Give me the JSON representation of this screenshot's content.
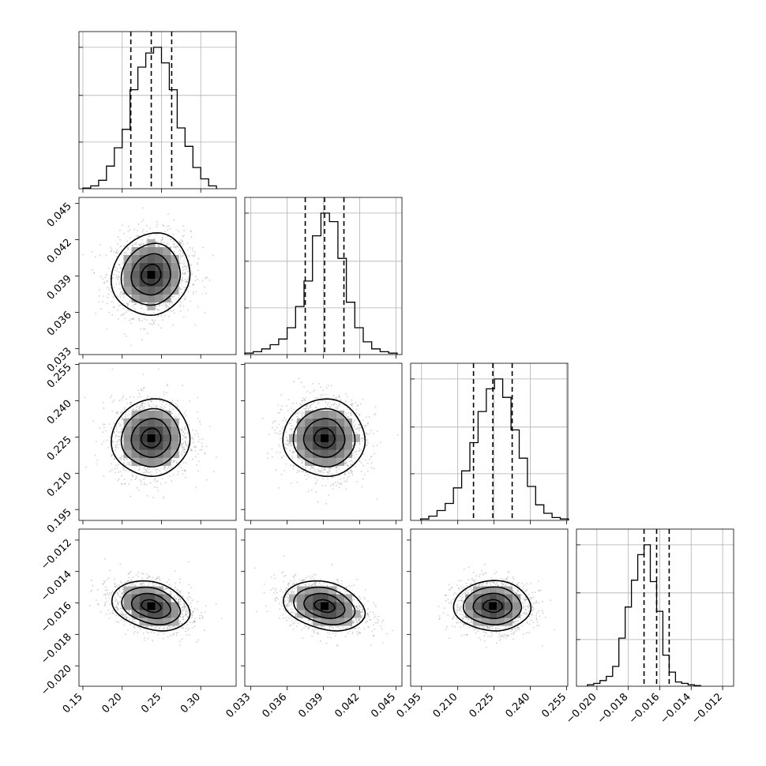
{
  "chart_data": {
    "type": "corner",
    "title": "",
    "grid": true,
    "quantile_lines": "dashed",
    "parameters": [
      {
        "index": 0,
        "range": [
          0.145,
          0.345
        ],
        "ticks": [
          0.15,
          0.2,
          0.25,
          0.3
        ],
        "tick_labels": [
          "0.15",
          "0.20",
          "0.25",
          "0.30"
        ],
        "quantiles": [
          0.211,
          0.237,
          0.263
        ],
        "histogram": {
          "bin_edges": [
            0.15,
            0.16,
            0.17,
            0.18,
            0.19,
            0.2,
            0.21,
            0.22,
            0.23,
            0.24,
            0.25,
            0.26,
            0.27,
            0.28,
            0.29,
            0.3,
            0.31,
            0.32
          ],
          "counts": [
            0.005,
            0.02,
            0.06,
            0.16,
            0.29,
            0.42,
            0.7,
            0.86,
            0.96,
            1.0,
            0.89,
            0.7,
            0.43,
            0.3,
            0.15,
            0.07,
            0.02
          ]
        }
      },
      {
        "index": 1,
        "range": [
          0.0325,
          0.0455
        ],
        "ticks": [
          0.033,
          0.036,
          0.039,
          0.042,
          0.045
        ],
        "tick_labels": [
          "0.033",
          "0.036",
          "0.039",
          "0.042",
          "0.045"
        ],
        "quantiles": [
          0.0375,
          0.0391,
          0.0407
        ],
        "histogram": {
          "bin_edges": [
            0.0325,
            0.0332,
            0.0339,
            0.0346,
            0.0353,
            0.036,
            0.0367,
            0.0374,
            0.0381,
            0.0388,
            0.0395,
            0.0402,
            0.0409,
            0.0416,
            0.0423,
            0.043,
            0.0437,
            0.0444,
            0.0451
          ],
          "counts": [
            0.01,
            0.02,
            0.04,
            0.07,
            0.11,
            0.19,
            0.34,
            0.52,
            0.84,
            1.0,
            0.94,
            0.68,
            0.37,
            0.19,
            0.09,
            0.04,
            0.02,
            0.01
          ]
        }
      },
      {
        "index": 2,
        "range": [
          0.1905,
          0.2555
        ],
        "ticks": [
          0.195,
          0.21,
          0.225,
          0.24,
          0.255
        ],
        "tick_labels": [
          "0.195",
          "0.210",
          "0.225",
          "0.240",
          "0.255"
        ],
        "quantiles": [
          0.2165,
          0.2245,
          0.2325
        ],
        "histogram": {
          "bin_edges": [
            0.1946,
            0.198,
            0.2014,
            0.2048,
            0.2082,
            0.2116,
            0.215,
            0.2184,
            0.2218,
            0.2252,
            0.2286,
            0.232,
            0.2354,
            0.2388,
            0.2422,
            0.2456,
            0.249,
            0.2524,
            0.2558
          ],
          "counts": [
            0.01,
            0.03,
            0.07,
            0.12,
            0.23,
            0.35,
            0.55,
            0.77,
            0.93,
            1.0,
            0.87,
            0.64,
            0.44,
            0.24,
            0.11,
            0.05,
            0.02,
            0.01
          ]
        }
      },
      {
        "index": 3,
        "range": [
          -0.0213,
          -0.0113
        ],
        "ticks": [
          -0.02,
          -0.018,
          -0.016,
          -0.014,
          -0.012
        ],
        "tick_labels": [
          "−0.020",
          "−0.018",
          "−0.016",
          "−0.014",
          "−0.012"
        ],
        "quantiles": [
          -0.017,
          -0.0162,
          -0.0154
        ],
        "histogram": {
          "bin_edges": [
            -0.0206,
            -0.0202,
            -0.0198,
            -0.0194,
            -0.019,
            -0.0186,
            -0.0182,
            -0.0178,
            -0.0174,
            -0.017,
            -0.0166,
            -0.0162,
            -0.0158,
            -0.0154,
            -0.015,
            -0.0146,
            -0.0142,
            -0.0138,
            -0.0134
          ],
          "counts": [
            0.01,
            0.02,
            0.04,
            0.07,
            0.14,
            0.34,
            0.56,
            0.75,
            0.93,
            1.0,
            0.74,
            0.53,
            0.22,
            0.1,
            0.03,
            0.02,
            0.01,
            0.005
          ]
        }
      }
    ],
    "pairs": [
      {
        "x": 0,
        "y": 1,
        "center": [
          0.237,
          0.0391
        ],
        "sigma": [
          0.025,
          0.0017
        ],
        "rho": 0.05
      },
      {
        "x": 0,
        "y": 2,
        "center": [
          0.237,
          0.2245
        ],
        "sigma": [
          0.025,
          0.008
        ],
        "rho": 0.0
      },
      {
        "x": 1,
        "y": 2,
        "center": [
          0.0391,
          0.2245
        ],
        "sigma": [
          0.0017,
          0.008
        ],
        "rho": -0.05
      },
      {
        "x": 0,
        "y": 3,
        "center": [
          0.237,
          -0.0162
        ],
        "sigma": [
          0.025,
          0.0008
        ],
        "rho": -0.3
      },
      {
        "x": 1,
        "y": 3,
        "center": [
          0.0391,
          -0.0162
        ],
        "sigma": [
          0.0017,
          0.0008
        ],
        "rho": -0.3
      },
      {
        "x": 2,
        "y": 3,
        "center": [
          0.2245,
          -0.0162
        ],
        "sigma": [
          0.008,
          0.0008
        ],
        "rho": -0.05
      }
    ],
    "contour_levels_sigma": [
      0.5,
      1.0,
      1.5,
      2.0
    ]
  }
}
